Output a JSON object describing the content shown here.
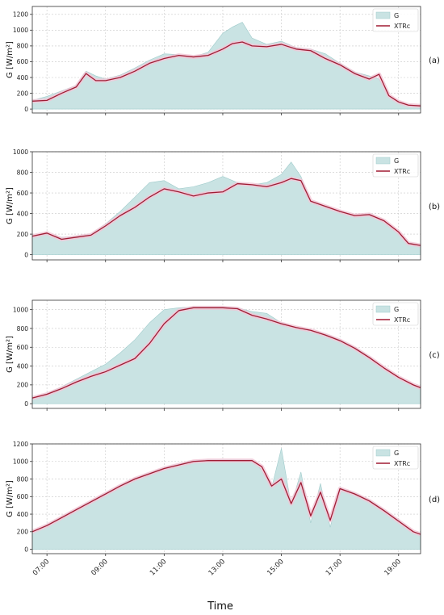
{
  "figure": {
    "xlabel": "Time",
    "x_ticks": [
      "07:00",
      "09:00",
      "11:00",
      "13:00",
      "15:00",
      "17:00",
      "19:00"
    ]
  },
  "colors": {
    "G_fill": "#c9e3e3",
    "G_edge": "#9fcbcb",
    "XTRc_line": "#a01c34",
    "XTRc_band": "#f3c6d6",
    "grid": "#c8c8c8"
  },
  "chart_data": [
    {
      "type": "area",
      "panel_label": "(a)",
      "ylabel": "G [W/m²]",
      "x_range": [
        "06:30",
        "19:45"
      ],
      "ylim": [
        -50,
        1300
      ],
      "y_ticks": [
        0,
        200,
        400,
        600,
        800,
        1000,
        1200
      ],
      "grid": true,
      "legend_position": "top-right",
      "series": [
        {
          "name": "G",
          "style": "filled area",
          "x": [
            "06:30",
            "07:00",
            "07:30",
            "08:00",
            "08:20",
            "08:40",
            "09:00",
            "09:30",
            "10:00",
            "10:30",
            "11:00",
            "11:30",
            "12:00",
            "12:30",
            "13:00",
            "13:20",
            "13:40",
            "14:00",
            "14:30",
            "15:00",
            "15:30",
            "16:00",
            "16:30",
            "17:00",
            "17:30",
            "18:00",
            "18:20",
            "18:40",
            "19:00",
            "19:20",
            "19:45"
          ],
          "y": [
            110,
            160,
            230,
            300,
            480,
            420,
            380,
            430,
            520,
            620,
            700,
            690,
            660,
            720,
            960,
            1040,
            1100,
            900,
            820,
            860,
            780,
            760,
            700,
            580,
            470,
            420,
            380,
            160,
            80,
            50,
            40
          ]
        },
        {
          "name": "XTRc",
          "style": "line",
          "x": [
            "06:30",
            "07:00",
            "07:30",
            "08:00",
            "08:20",
            "08:40",
            "09:00",
            "09:30",
            "10:00",
            "10:30",
            "11:00",
            "11:30",
            "12:00",
            "12:30",
            "13:00",
            "13:20",
            "13:40",
            "14:00",
            "14:30",
            "15:00",
            "15:30",
            "16:00",
            "16:30",
            "17:00",
            "17:30",
            "18:00",
            "18:20",
            "18:40",
            "19:00",
            "19:20",
            "19:45"
          ],
          "y": [
            100,
            110,
            200,
            280,
            450,
            360,
            360,
            400,
            480,
            580,
            640,
            680,
            660,
            680,
            760,
            830,
            850,
            800,
            790,
            820,
            760,
            740,
            640,
            560,
            450,
            380,
            440,
            170,
            90,
            50,
            40
          ]
        }
      ]
    },
    {
      "type": "area",
      "panel_label": "(b)",
      "ylabel": "G [W/m²]",
      "x_range": [
        "06:30",
        "19:45"
      ],
      "ylim": [
        -50,
        1000
      ],
      "y_ticks": [
        0,
        200,
        400,
        600,
        800,
        1000
      ],
      "grid": true,
      "legend_position": "top-right",
      "series": [
        {
          "name": "G",
          "style": "filled area",
          "x": [
            "06:30",
            "07:00",
            "07:30",
            "08:00",
            "08:30",
            "09:00",
            "09:30",
            "10:00",
            "10:30",
            "11:00",
            "11:30",
            "12:00",
            "12:30",
            "13:00",
            "13:30",
            "14:00",
            "14:30",
            "15:00",
            "15:20",
            "15:40",
            "16:00",
            "16:30",
            "17:00",
            "17:30",
            "18:00",
            "18:30",
            "19:00",
            "19:20",
            "19:45"
          ],
          "y": [
            180,
            200,
            170,
            180,
            200,
            300,
            420,
            560,
            700,
            720,
            640,
            660,
            700,
            760,
            700,
            680,
            700,
            780,
            900,
            760,
            520,
            460,
            420,
            380,
            400,
            320,
            200,
            120,
            90
          ]
        },
        {
          "name": "XTRc",
          "style": "line",
          "x": [
            "06:30",
            "07:00",
            "07:30",
            "08:00",
            "08:30",
            "09:00",
            "09:30",
            "10:00",
            "10:30",
            "11:00",
            "11:30",
            "12:00",
            "12:30",
            "13:00",
            "13:30",
            "14:00",
            "14:30",
            "15:00",
            "15:20",
            "15:40",
            "16:00",
            "16:30",
            "17:00",
            "17:30",
            "18:00",
            "18:30",
            "19:00",
            "19:20",
            "19:45"
          ],
          "y": [
            180,
            210,
            150,
            170,
            190,
            280,
            380,
            460,
            560,
            640,
            610,
            570,
            600,
            610,
            690,
            680,
            660,
            700,
            740,
            720,
            520,
            470,
            420,
            380,
            390,
            330,
            220,
            110,
            90
          ]
        }
      ]
    },
    {
      "type": "area",
      "panel_label": "(c)",
      "ylabel": "G [W/m²]",
      "x_range": [
        "06:30",
        "19:45"
      ],
      "ylim": [
        -50,
        1100
      ],
      "y_ticks": [
        0,
        200,
        400,
        600,
        800,
        1000
      ],
      "grid": true,
      "legend_position": "top-right",
      "series": [
        {
          "name": "G",
          "style": "filled area",
          "x": [
            "06:30",
            "07:00",
            "07:30",
            "08:00",
            "08:30",
            "09:00",
            "09:30",
            "10:00",
            "10:30",
            "11:00",
            "11:30",
            "12:00",
            "12:30",
            "13:00",
            "13:30",
            "14:00",
            "14:30",
            "15:00",
            "15:30",
            "16:00",
            "16:30",
            "17:00",
            "17:30",
            "18:00",
            "18:30",
            "19:00",
            "19:30",
            "19:45"
          ],
          "y": [
            60,
            110,
            180,
            260,
            340,
            420,
            540,
            680,
            860,
            1000,
            1020,
            1030,
            1030,
            1030,
            1020,
            980,
            960,
            860,
            810,
            780,
            740,
            680,
            600,
            500,
            380,
            280,
            200,
            170
          ]
        },
        {
          "name": "XTRc",
          "style": "line",
          "x": [
            "06:30",
            "07:00",
            "07:30",
            "08:00",
            "08:30",
            "09:00",
            "09:30",
            "10:00",
            "10:30",
            "11:00",
            "11:30",
            "12:00",
            "12:30",
            "13:00",
            "13:30",
            "14:00",
            "14:30",
            "15:00",
            "15:30",
            "16:00",
            "16:30",
            "17:00",
            "17:30",
            "18:00",
            "18:30",
            "19:00",
            "19:30",
            "19:45"
          ],
          "y": [
            60,
            100,
            160,
            230,
            290,
            340,
            410,
            480,
            640,
            850,
            990,
            1020,
            1020,
            1020,
            1010,
            940,
            900,
            850,
            810,
            780,
            730,
            670,
            590,
            490,
            380,
            280,
            200,
            170
          ]
        }
      ]
    },
    {
      "type": "area",
      "panel_label": "(d)",
      "ylabel": "G [W/m²]",
      "x_range": [
        "06:30",
        "19:45"
      ],
      "ylim": [
        -50,
        1200
      ],
      "y_ticks": [
        0,
        200,
        400,
        600,
        800,
        1000,
        1200
      ],
      "grid": true,
      "legend_position": "top-right",
      "series": [
        {
          "name": "G",
          "style": "filled area",
          "x": [
            "06:30",
            "07:00",
            "07:30",
            "08:00",
            "08:30",
            "09:00",
            "09:30",
            "10:00",
            "10:30",
            "11:00",
            "11:30",
            "12:00",
            "12:30",
            "13:00",
            "13:30",
            "14:00",
            "14:20",
            "14:40",
            "15:00",
            "15:20",
            "15:40",
            "16:00",
            "16:20",
            "16:40",
            "17:00",
            "17:30",
            "18:00",
            "18:30",
            "19:00",
            "19:30",
            "19:45"
          ],
          "y": [
            200,
            280,
            370,
            460,
            550,
            640,
            730,
            810,
            870,
            930,
            970,
            1010,
            1020,
            1020,
            1020,
            1020,
            900,
            700,
            1150,
            500,
            880,
            300,
            750,
            250,
            700,
            640,
            560,
            450,
            330,
            200,
            170
          ]
        },
        {
          "name": "XTRc",
          "style": "line",
          "x": [
            "06:30",
            "07:00",
            "07:30",
            "08:00",
            "08:30",
            "09:00",
            "09:30",
            "10:00",
            "10:30",
            "11:00",
            "11:30",
            "12:00",
            "12:30",
            "13:00",
            "13:30",
            "14:00",
            "14:20",
            "14:40",
            "15:00",
            "15:20",
            "15:40",
            "16:00",
            "16:20",
            "16:40",
            "17:00",
            "17:30",
            "18:00",
            "18:30",
            "19:00",
            "19:30",
            "19:45"
          ],
          "y": [
            200,
            270,
            360,
            450,
            540,
            630,
            720,
            800,
            860,
            920,
            960,
            1000,
            1010,
            1010,
            1010,
            1010,
            940,
            720,
            800,
            520,
            760,
            380,
            650,
            330,
            690,
            630,
            550,
            440,
            320,
            200,
            170
          ]
        }
      ]
    }
  ]
}
